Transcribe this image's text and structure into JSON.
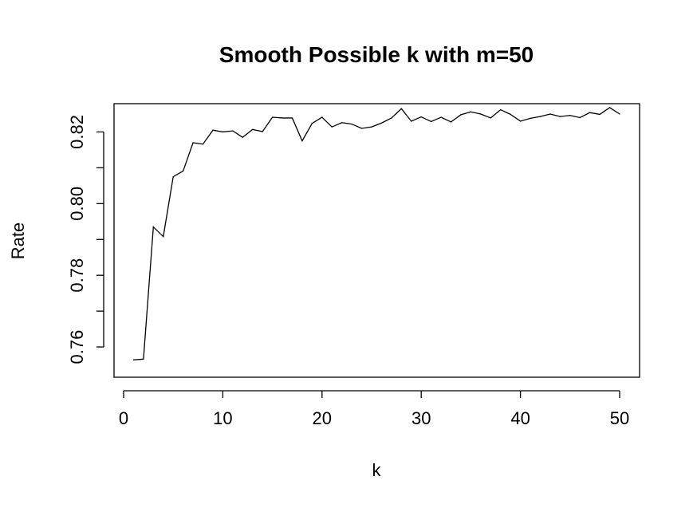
{
  "chart_data": {
    "type": "line",
    "title": "Smooth Possible k with m=50",
    "xlabel": "k",
    "ylabel": "Rate",
    "xlim": [
      0,
      50
    ],
    "ylim": [
      0.752,
      0.827
    ],
    "x_ticks": [
      0,
      10,
      20,
      30,
      40,
      50
    ],
    "y_ticks": [
      0.76,
      0.78,
      0.8,
      0.82
    ],
    "y_tick_labels": [
      "0.76",
      "0.78",
      "0.80",
      "0.82"
    ],
    "grid": false,
    "line_color": "#000000",
    "series": [
      {
        "x": [
          1,
          2,
          3,
          4,
          5,
          6,
          7,
          8,
          9,
          10,
          11,
          12,
          13,
          14,
          15,
          16,
          17,
          18,
          19,
          20,
          21,
          22,
          23,
          24,
          25,
          26,
          27,
          28,
          29,
          30,
          31,
          32,
          33,
          34,
          35,
          36,
          37,
          38,
          39,
          40,
          41,
          42,
          43,
          44,
          45,
          46,
          47,
          48,
          49,
          50
        ],
        "values": [
          0.7564,
          0.7566,
          0.7935,
          0.7908,
          0.8075,
          0.8091,
          0.817,
          0.8166,
          0.8205,
          0.82,
          0.8203,
          0.8185,
          0.8207,
          0.8201,
          0.8241,
          0.8239,
          0.8239,
          0.8175,
          0.8224,
          0.8241,
          0.8214,
          0.8226,
          0.8222,
          0.821,
          0.8214,
          0.8225,
          0.8239,
          0.8265,
          0.823,
          0.8242,
          0.8229,
          0.8241,
          0.8228,
          0.8248,
          0.8256,
          0.825,
          0.8239,
          0.8262,
          0.8249,
          0.823,
          0.8238,
          0.8243,
          0.825,
          0.8243,
          0.8246,
          0.824,
          0.8254,
          0.8249,
          0.8268,
          0.825
        ]
      }
    ]
  }
}
